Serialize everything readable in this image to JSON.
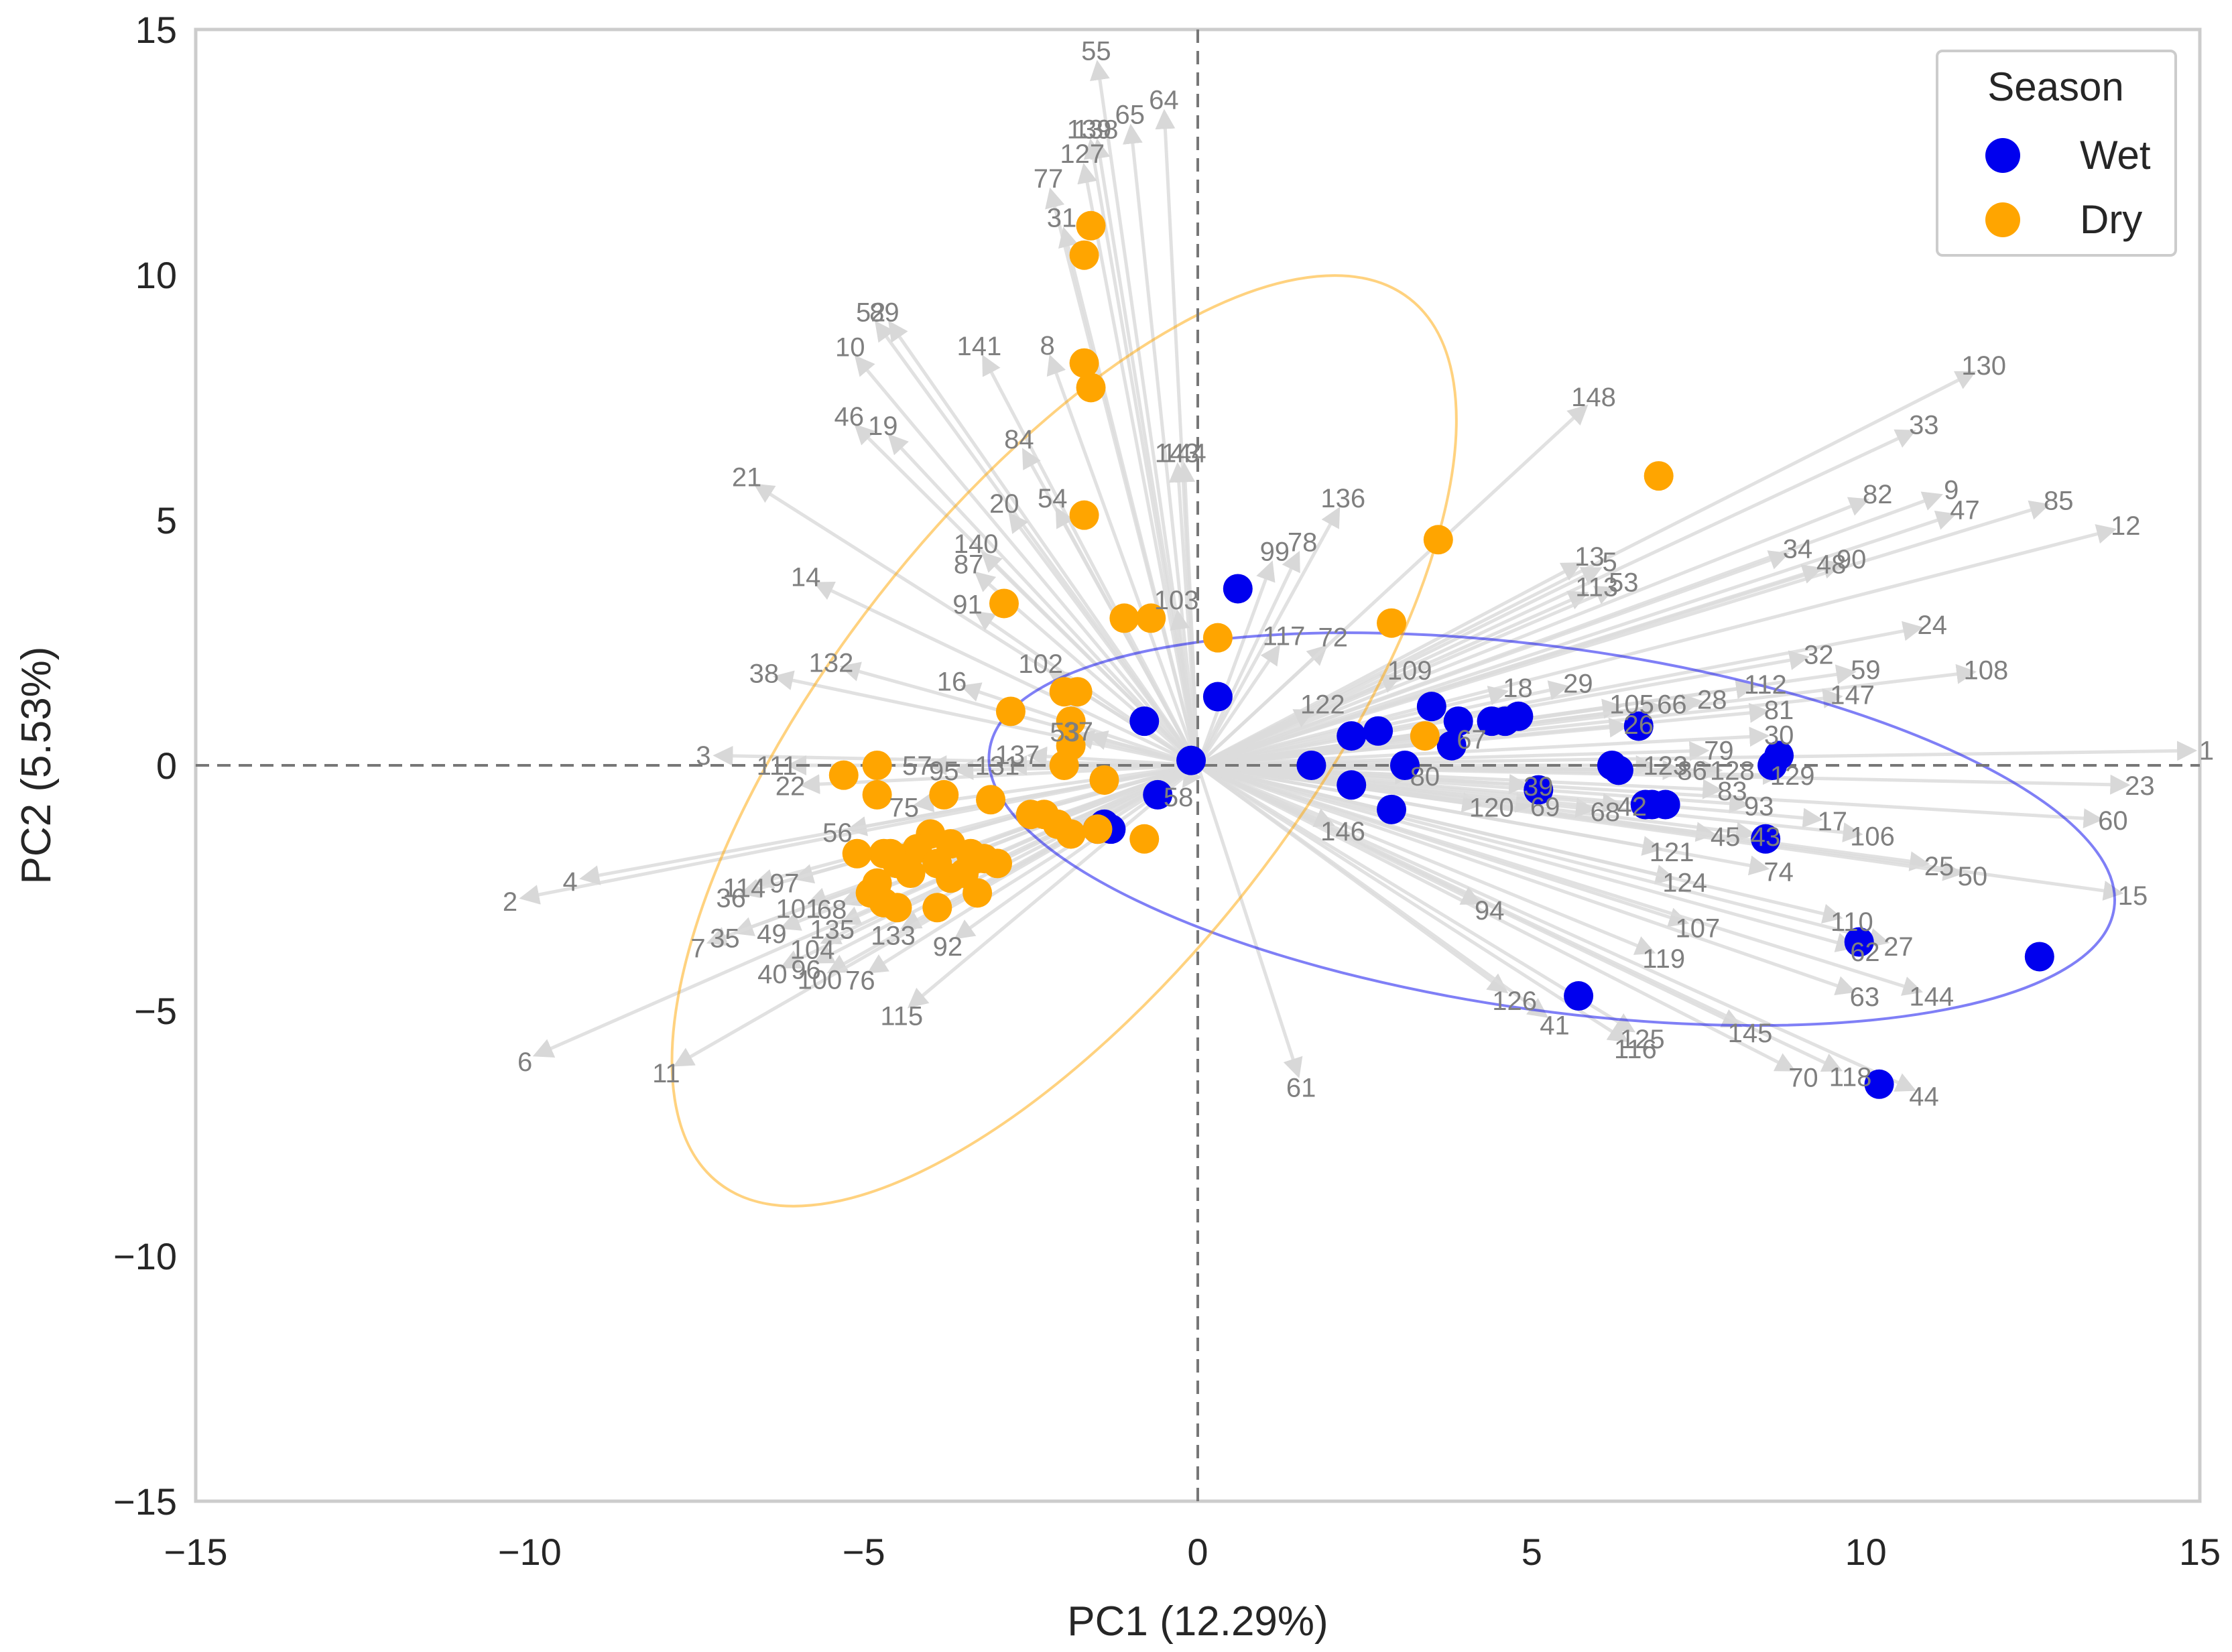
{
  "chart_data": {
    "type": "scatter",
    "subtype": "pca-biplot",
    "xlabel": "PC1 (12.29%)",
    "ylabel": "PC2 (5.53%)",
    "xlim": [
      -15,
      15
    ],
    "ylim": [
      -15,
      15
    ],
    "xticks": [
      -15,
      -10,
      -5,
      0,
      5,
      10,
      15
    ],
    "yticks": [
      -15,
      -10,
      -5,
      0,
      5,
      10,
      15
    ],
    "xtick_labels": [
      "−15",
      "−10",
      "−5",
      "0",
      "5",
      "10",
      "15"
    ],
    "ytick_labels": [
      "−15",
      "−10",
      "−5",
      "0",
      "5",
      "10",
      "15"
    ],
    "grid": false,
    "reference_lines": {
      "x": 0,
      "y": 0,
      "style": "dashed",
      "color": "#777777"
    },
    "legend": {
      "title": "Season",
      "position": "top-right",
      "entries": [
        "Wet",
        "Dry"
      ]
    },
    "colors": {
      "Wet": "#0000ee",
      "Dry": "#ffa500",
      "loading_arrow": "#dcdcdc",
      "loading_label": "#7f7f7f",
      "frame": "#cccccc"
    },
    "series": [
      {
        "name": "Wet",
        "color": "#0000ee",
        "x": [
          0.6,
          0.3,
          -0.8,
          -0.1,
          1.7,
          2.3,
          2.3,
          2.7,
          2.9,
          3.1,
          3.5,
          3.8,
          3.9,
          4.4,
          4.6,
          4.8,
          5.1,
          6.2,
          6.3,
          6.6,
          6.7,
          6.8,
          7.0,
          8.5,
          8.7,
          8.6,
          9.9,
          12.6,
          10.2,
          5.7,
          -1.3,
          -1.5,
          -1.4,
          -0.6
        ],
        "y": [
          3.6,
          1.4,
          0.9,
          0.1,
          0.0,
          0.6,
          -0.4,
          0.7,
          -0.9,
          0.0,
          1.2,
          0.4,
          0.9,
          0.9,
          0.9,
          1.0,
          -0.5,
          0.0,
          -0.1,
          0.8,
          -0.8,
          -0.8,
          -0.8,
          -1.5,
          0.2,
          0.0,
          -3.6,
          -3.9,
          -6.5,
          -4.7,
          -1.3,
          -1.3,
          -1.2,
          -0.6
        ]
      },
      {
        "name": "Dry",
        "color": "#ffa500",
        "x": [
          -1.6,
          -1.7,
          -1.7,
          -1.6,
          -1.7,
          6.9,
          3.6,
          2.9,
          -0.7,
          -1.1,
          0.3,
          -2.9,
          -2.8,
          -2.0,
          -1.8,
          -1.9,
          -1.9,
          -2.0,
          -1.4,
          -0.8,
          3.4,
          -5.3,
          -4.8,
          -4.8,
          -3.8,
          -3.1,
          -2.5,
          -2.3,
          -2.1,
          -1.9,
          -1.5,
          -4.0,
          -3.7,
          -3.4,
          -3.2,
          -3.0,
          -4.4,
          -4.7,
          -4.5,
          -4.3,
          -4.2,
          -3.9,
          -3.7,
          -3.5,
          -3.3,
          -5.1,
          -4.6,
          -4.9,
          -4.7,
          -4.8,
          -4.5,
          -3.9,
          -3.3
        ],
        "y": [
          11.0,
          10.4,
          8.2,
          7.7,
          5.1,
          5.9,
          4.6,
          2.9,
          3.0,
          3.0,
          2.6,
          3.3,
          1.1,
          1.5,
          1.5,
          0.9,
          0.4,
          0.0,
          -0.3,
          -1.5,
          0.6,
          -0.2,
          0.0,
          -0.6,
          -0.6,
          -0.7,
          -1.0,
          -1.0,
          -1.2,
          -1.4,
          -1.3,
          -1.4,
          -1.6,
          -1.8,
          -1.9,
          -2.0,
          -1.9,
          -1.8,
          -2.0,
          -2.2,
          -1.7,
          -2.0,
          -2.3,
          -2.2,
          -1.9,
          -1.8,
          -1.8,
          -2.6,
          -2.8,
          -2.4,
          -2.9,
          -2.9,
          -2.6
        ]
      }
    ],
    "confidence_ellipses": [
      {
        "series": "Wet",
        "center": [
          5.3,
          -1.3
        ],
        "semi_axis_1": 8.5,
        "semi_axis_2": 3.7,
        "angle_deg": -8
      },
      {
        "series": "Dry",
        "center": [
          -2.0,
          0.5
        ],
        "semi_axis_1": 8.4,
        "semi_axis_2": 4.8,
        "angle_deg": 52
      }
    ],
    "loadings": [
      {
        "label": "55",
        "x": -1.5,
        "y": 14.3
      },
      {
        "label": "64",
        "x": -0.5,
        "y": 13.3
      },
      {
        "label": "65",
        "x": -1.0,
        "y": 13.0
      },
      {
        "label": "139",
        "x": -1.6,
        "y": 12.7
      },
      {
        "label": "138",
        "x": -1.5,
        "y": 12.7
      },
      {
        "label": "127",
        "x": -1.7,
        "y": 12.2
      },
      {
        "label": "77",
        "x": -2.2,
        "y": 11.7
      },
      {
        "label": "31",
        "x": -2.0,
        "y": 10.9
      },
      {
        "label": "52",
        "x": -4.8,
        "y": 9.0
      },
      {
        "label": "89",
        "x": -4.6,
        "y": 9.0
      },
      {
        "label": "10",
        "x": -5.1,
        "y": 8.3
      },
      {
        "label": "141",
        "x": -3.2,
        "y": 8.3
      },
      {
        "label": "8",
        "x": -2.2,
        "y": 8.3
      },
      {
        "label": "46",
        "x": -5.1,
        "y": 6.9
      },
      {
        "label": "19",
        "x": -4.6,
        "y": 6.7
      },
      {
        "label": "84",
        "x": -2.6,
        "y": 6.4
      },
      {
        "label": "143",
        "x": -0.3,
        "y": 6.1
      },
      {
        "label": "144",
        "x": -0.2,
        "y": 6.1
      },
      {
        "label": "21",
        "x": -6.6,
        "y": 5.7
      },
      {
        "label": "54",
        "x": -2.1,
        "y": 5.2
      },
      {
        "label": "20",
        "x": -2.8,
        "y": 5.1
      },
      {
        "label": "140",
        "x": -3.2,
        "y": 4.3
      },
      {
        "label": "87",
        "x": -3.3,
        "y": 3.9
      },
      {
        "label": "14",
        "x": -5.7,
        "y": 3.7
      },
      {
        "label": "91",
        "x": -3.3,
        "y": 3.1
      },
      {
        "label": "103",
        "x": -0.3,
        "y": 3.1
      },
      {
        "label": "136",
        "x": 2.1,
        "y": 5.2
      },
      {
        "label": "78",
        "x": 1.5,
        "y": 4.3
      },
      {
        "label": "99",
        "x": 1.1,
        "y": 4.1
      },
      {
        "label": "117",
        "x": 1.2,
        "y": 2.4
      },
      {
        "label": "72",
        "x": 1.9,
        "y": 2.4
      },
      {
        "label": "148",
        "x": 5.8,
        "y": 7.3
      },
      {
        "label": "102",
        "x": -2.2,
        "y": 1.9
      },
      {
        "label": "132",
        "x": -5.3,
        "y": 2.0
      },
      {
        "label": "38",
        "x": -6.3,
        "y": 1.8
      },
      {
        "label": "16",
        "x": -3.5,
        "y": 1.6
      },
      {
        "label": "3",
        "x": -7.2,
        "y": 0.2
      },
      {
        "label": "111",
        "x": -6.1,
        "y": 0.0
      },
      {
        "label": "22",
        "x": -5.9,
        "y": -0.4
      },
      {
        "label": "57",
        "x": -4.0,
        "y": 0.0
      },
      {
        "label": "95",
        "x": -3.6,
        "y": -0.1
      },
      {
        "label": "131",
        "x": -2.8,
        "y": 0.0
      },
      {
        "label": "137",
        "x": -2.5,
        "y": 0.2
      },
      {
        "label": "53",
        "x": -1.8,
        "y": 0.6
      },
      {
        "label": "37",
        "x": -1.6,
        "y": 0.6
      },
      {
        "label": "58",
        "x": -0.2,
        "y": -0.4
      },
      {
        "label": "75",
        "x": -4.2,
        "y": -0.8
      },
      {
        "label": "56",
        "x": -5.2,
        "y": -1.3
      },
      {
        "label": "2",
        "x": -10.1,
        "y": -2.7
      },
      {
        "label": "4",
        "x": -9.2,
        "y": -2.3
      },
      {
        "label": "114",
        "x": -6.6,
        "y": -2.4
      },
      {
        "label": "97",
        "x": -6.0,
        "y": -2.3
      },
      {
        "label": "36",
        "x": -6.8,
        "y": -2.6
      },
      {
        "label": "101",
        "x": -5.8,
        "y": -2.8
      },
      {
        "label": "68",
        "x": -5.3,
        "y": -2.8
      },
      {
        "label": "35",
        "x": -6.9,
        "y": -3.4
      },
      {
        "label": "7",
        "x": -7.3,
        "y": -3.6
      },
      {
        "label": "49",
        "x": -6.2,
        "y": -3.3
      },
      {
        "label": "135",
        "x": -5.3,
        "y": -3.2
      },
      {
        "label": "133",
        "x": -4.4,
        "y": -3.3
      },
      {
        "label": "92",
        "x": -3.6,
        "y": -3.5
      },
      {
        "label": "104",
        "x": -5.6,
        "y": -3.6
      },
      {
        "label": "40",
        "x": -6.2,
        "y": -4.1
      },
      {
        "label": "96",
        "x": -5.7,
        "y": -4.0
      },
      {
        "label": "100",
        "x": -5.5,
        "y": -4.2
      },
      {
        "label": "76",
        "x": -4.9,
        "y": -4.2
      },
      {
        "label": "115",
        "x": -4.3,
        "y": -4.9
      },
      {
        "label": "6",
        "x": -9.9,
        "y": -5.9
      },
      {
        "label": "11",
        "x": -7.8,
        "y": -6.1
      },
      {
        "label": "61",
        "x": 1.5,
        "y": -6.3
      },
      {
        "label": "130",
        "x": 11.6,
        "y": 8.0
      },
      {
        "label": "33",
        "x": 10.7,
        "y": 6.8
      },
      {
        "label": "82",
        "x": 10.0,
        "y": 5.4
      },
      {
        "label": "9",
        "x": 11.1,
        "y": 5.5
      },
      {
        "label": "47",
        "x": 11.3,
        "y": 5.1
      },
      {
        "label": "85",
        "x": 12.7,
        "y": 5.3
      },
      {
        "label": "12",
        "x": 13.7,
        "y": 4.8
      },
      {
        "label": "34",
        "x": 8.8,
        "y": 4.3
      },
      {
        "label": "90",
        "x": 9.6,
        "y": 4.1
      },
      {
        "label": "48",
        "x": 9.3,
        "y": 4.0
      },
      {
        "label": "13",
        "x": 5.7,
        "y": 4.1
      },
      {
        "label": "5",
        "x": 6.0,
        "y": 4.0
      },
      {
        "label": "113",
        "x": 5.8,
        "y": 3.5
      },
      {
        "label": "53",
        "x": 6.2,
        "y": 3.6
      },
      {
        "label": "24",
        "x": 10.8,
        "y": 2.8
      },
      {
        "label": "32",
        "x": 9.1,
        "y": 2.2
      },
      {
        "label": "59",
        "x": 9.8,
        "y": 1.9
      },
      {
        "label": "108",
        "x": 11.6,
        "y": 1.9
      },
      {
        "label": "147",
        "x": 9.6,
        "y": 1.4
      },
      {
        "label": "112",
        "x": 8.3,
        "y": 1.6
      },
      {
        "label": "81",
        "x": 8.5,
        "y": 1.1
      },
      {
        "label": "28",
        "x": 7.5,
        "y": 1.3
      },
      {
        "label": "29",
        "x": 5.5,
        "y": 1.6
      },
      {
        "label": "105",
        "x": 6.3,
        "y": 1.2
      },
      {
        "label": "66",
        "x": 6.9,
        "y": 1.2
      },
      {
        "label": "30",
        "x": 8.5,
        "y": 0.6
      },
      {
        "label": "18",
        "x": 4.6,
        "y": 1.5
      },
      {
        "label": "109",
        "x": 3.0,
        "y": 1.8
      },
      {
        "label": "122",
        "x": 1.7,
        "y": 1.1
      },
      {
        "label": "26",
        "x": 6.4,
        "y": 0.8
      },
      {
        "label": "79",
        "x": 7.6,
        "y": 0.3
      },
      {
        "label": "123",
        "x": 6.8,
        "y": 0.0
      },
      {
        "label": "86",
        "x": 7.2,
        "y": -0.1
      },
      {
        "label": "128",
        "x": 7.8,
        "y": -0.1
      },
      {
        "label": "129",
        "x": 8.7,
        "y": -0.2
      },
      {
        "label": "1",
        "x": 14.9,
        "y": 0.3
      },
      {
        "label": "23",
        "x": 13.9,
        "y": -0.4
      },
      {
        "label": "60",
        "x": 13.5,
        "y": -1.1
      },
      {
        "label": "15",
        "x": 13.8,
        "y": -2.6
      },
      {
        "label": "83",
        "x": 7.8,
        "y": -0.5
      },
      {
        "label": "93",
        "x": 8.2,
        "y": -0.8
      },
      {
        "label": "17",
        "x": 9.3,
        "y": -1.1
      },
      {
        "label": "106",
        "x": 9.9,
        "y": -1.4
      },
      {
        "label": "43",
        "x": 8.3,
        "y": -1.4
      },
      {
        "label": "45",
        "x": 7.7,
        "y": -1.4
      },
      {
        "label": "74",
        "x": 8.5,
        "y": -2.1
      },
      {
        "label": "121",
        "x": 6.9,
        "y": -1.7
      },
      {
        "label": "124",
        "x": 7.1,
        "y": -2.3
      },
      {
        "label": "25",
        "x": 10.9,
        "y": -2.0
      },
      {
        "label": "50",
        "x": 11.4,
        "y": -2.2
      },
      {
        "label": "110",
        "x": 9.6,
        "y": -3.1
      },
      {
        "label": "62",
        "x": 9.8,
        "y": -3.7
      },
      {
        "label": "27",
        "x": 10.3,
        "y": -3.6
      },
      {
        "label": "107",
        "x": 7.3,
        "y": -3.2
      },
      {
        "label": "119",
        "x": 6.8,
        "y": -3.8
      },
      {
        "label": "63",
        "x": 9.8,
        "y": -4.6
      },
      {
        "label": "144",
        "x": 10.8,
        "y": -4.6
      },
      {
        "label": "145",
        "x": 8.1,
        "y": -5.3
      },
      {
        "label": "70",
        "x": 8.9,
        "y": -6.2
      },
      {
        "label": "118",
        "x": 9.6,
        "y": -6.2
      },
      {
        "label": "44",
        "x": 10.7,
        "y": -6.6
      },
      {
        "label": "94",
        "x": 4.2,
        "y": -2.8
      },
      {
        "label": "120",
        "x": 4.2,
        "y": -0.8
      },
      {
        "label": "69",
        "x": 5.0,
        "y": -0.8
      },
      {
        "label": "68",
        "x": 5.9,
        "y": -0.9
      },
      {
        "label": "42",
        "x": 6.3,
        "y": -0.8
      },
      {
        "label": "146",
        "x": 2.0,
        "y": -1.2
      },
      {
        "label": "126",
        "x": 4.6,
        "y": -4.6
      },
      {
        "label": "41",
        "x": 5.2,
        "y": -5.1
      },
      {
        "label": "125",
        "x": 6.5,
        "y": -5.4
      },
      {
        "label": "116",
        "x": 6.4,
        "y": -5.6
      },
      {
        "label": "39",
        "x": 4.9,
        "y": -0.4
      },
      {
        "label": "80",
        "x": 3.2,
        "y": -0.2
      },
      {
        "label": "67",
        "x": 3.9,
        "y": 0.5
      }
    ]
  }
}
